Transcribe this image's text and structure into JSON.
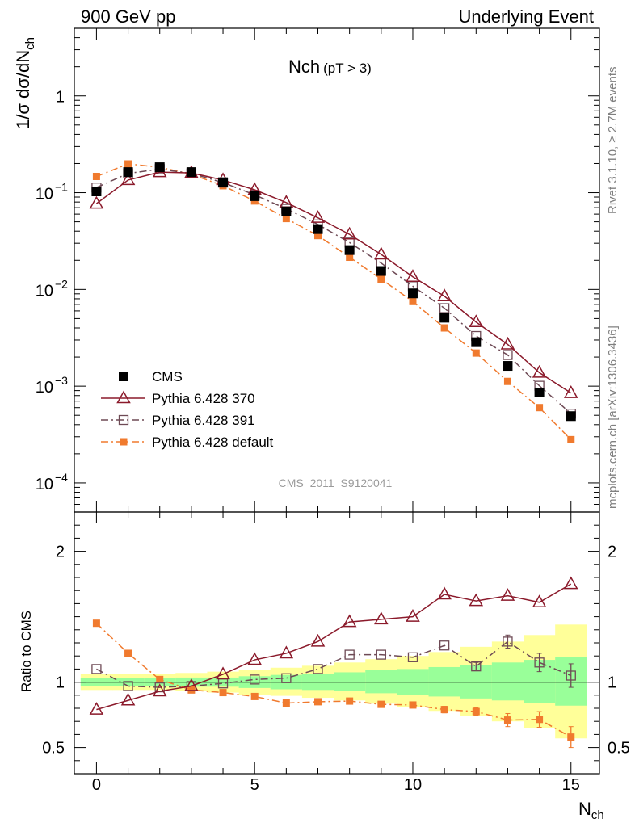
{
  "header": {
    "left": "900 GeV pp",
    "right": "Underlying Event"
  },
  "side": {
    "rivet": "Rivet 3.1.10, ≥ 2.7M events",
    "mcplots": "mcplots.cern.ch [arXiv:1306.3436]"
  },
  "chart_data": {
    "type": "scatter",
    "title_main": "Nch",
    "title_sub": "(pT >  3)",
    "xlabel": "N",
    "xlabel_sub": "ch",
    "ylabel": "1/σ dσ/dN",
    "ylabel_sub": "ch",
    "ratio_ylabel": "Ratio to CMS",
    "watermark": "CMS_2011_S9120041",
    "xlim": [
      -0.7,
      15.9
    ],
    "ylim": [
      5e-05,
      5
    ],
    "yscale": "log",
    "ratio_ylim": [
      0.3,
      2.3
    ],
    "x_ticks": [
      0,
      5,
      10,
      15
    ],
    "x_tick_labels": [
      "0",
      "5",
      "10",
      "15"
    ],
    "y_ticks": [
      0.0001,
      0.001,
      0.01,
      0.1,
      1
    ],
    "y_tick_labels": [
      {
        "base": "10",
        "exp": "−4"
      },
      {
        "base": "10",
        "exp": "−3"
      },
      {
        "base": "10",
        "exp": "−2"
      },
      {
        "base": "10",
        "exp": "−1"
      },
      {
        "base": "1",
        "exp": ""
      }
    ],
    "ratio_ticks": [
      0.5,
      1,
      2
    ],
    "ratio_tick_labels": [
      "0.5",
      "1",
      "2"
    ],
    "x": [
      0,
      1,
      2,
      3,
      4,
      5,
      6,
      7,
      8,
      9,
      10,
      11,
      12,
      13,
      14,
      15
    ],
    "legend_position": "lower-left",
    "series": [
      {
        "name": "CMS",
        "color": "#000000",
        "marker": "filled-square",
        "values": [
          0.103,
          0.163,
          0.183,
          0.163,
          0.128,
          0.092,
          0.064,
          0.042,
          0.0255,
          0.0155,
          0.0091,
          0.0051,
          0.00285,
          0.00162,
          0.00086,
          0.00049
        ]
      },
      {
        "name": "Pythia 6.428 370",
        "color": "#8b1a2b",
        "marker": "open-triangle",
        "line": "solid",
        "values": [
          0.077,
          0.135,
          0.163,
          0.16,
          0.135,
          0.107,
          0.079,
          0.055,
          0.037,
          0.023,
          0.0135,
          0.0085,
          0.0046,
          0.0027,
          0.00138,
          0.00085
        ],
        "ratio": [
          0.79,
          0.86,
          0.93,
          0.97,
          1.06,
          1.17,
          1.22,
          1.31,
          1.46,
          1.48,
          1.5,
          1.67,
          1.62,
          1.66,
          1.61,
          1.75
        ]
      },
      {
        "name": "Pythia 6.428 391",
        "color": "#6e4a55",
        "marker": "open-square",
        "line": "dash-dot",
        "values": [
          0.113,
          0.158,
          0.175,
          0.158,
          0.127,
          0.095,
          0.068,
          0.047,
          0.0305,
          0.0187,
          0.0108,
          0.0064,
          0.0033,
          0.0021,
          0.00101,
          0.00052
        ],
        "ratio": [
          1.1,
          0.97,
          0.96,
          0.97,
          0.99,
          1.02,
          1.03,
          1.1,
          1.21,
          1.21,
          1.19,
          1.28,
          1.12,
          1.31,
          1.15,
          1.05
        ],
        "ratio_err": [
          0,
          0,
          0,
          0,
          0,
          0,
          0,
          0,
          0,
          0,
          0,
          0,
          0.03,
          0.05,
          0.07,
          0.09
        ]
      },
      {
        "name": "Pythia 6.428 default",
        "color": "#f07a2e",
        "marker": "filled-square-small",
        "line": "dash-dot",
        "values": [
          0.147,
          0.198,
          0.183,
          0.155,
          0.118,
          0.082,
          0.054,
          0.036,
          0.0215,
          0.0128,
          0.0075,
          0.004,
          0.0022,
          0.00112,
          0.0006,
          0.00028
        ],
        "ratio": [
          1.45,
          1.22,
          1.02,
          0.94,
          0.92,
          0.89,
          0.84,
          0.85,
          0.855,
          0.83,
          0.825,
          0.79,
          0.775,
          0.71,
          0.715,
          0.58
        ],
        "ratio_err": [
          0,
          0,
          0,
          0,
          0,
          0,
          0,
          0,
          0,
          0,
          0.015,
          0.025,
          0.03,
          0.05,
          0.06,
          0.08
        ]
      }
    ],
    "cms_band_green": [
      [
        0.97,
        1.03
      ],
      [
        0.97,
        1.03
      ],
      [
        0.97,
        1.03
      ],
      [
        0.965,
        1.035
      ],
      [
        0.965,
        1.035
      ],
      [
        0.955,
        1.045
      ],
      [
        0.945,
        1.055
      ],
      [
        0.94,
        1.065
      ],
      [
        0.93,
        1.075
      ],
      [
        0.915,
        1.09
      ],
      [
        0.905,
        1.1
      ],
      [
        0.89,
        1.115
      ],
      [
        0.875,
        1.13
      ],
      [
        0.86,
        1.15
      ],
      [
        0.84,
        1.17
      ],
      [
        0.82,
        1.19
      ]
    ],
    "cms_band_yellow": [
      [
        0.94,
        1.06
      ],
      [
        0.94,
        1.06
      ],
      [
        0.94,
        1.06
      ],
      [
        0.93,
        1.07
      ],
      [
        0.92,
        1.08
      ],
      [
        0.905,
        1.095
      ],
      [
        0.895,
        1.11
      ],
      [
        0.88,
        1.125
      ],
      [
        0.86,
        1.15
      ],
      [
        0.835,
        1.175
      ],
      [
        0.81,
        1.2
      ],
      [
        0.78,
        1.23
      ],
      [
        0.74,
        1.27
      ],
      [
        0.7,
        1.31
      ],
      [
        0.65,
        1.36
      ],
      [
        0.57,
        1.44
      ]
    ]
  }
}
